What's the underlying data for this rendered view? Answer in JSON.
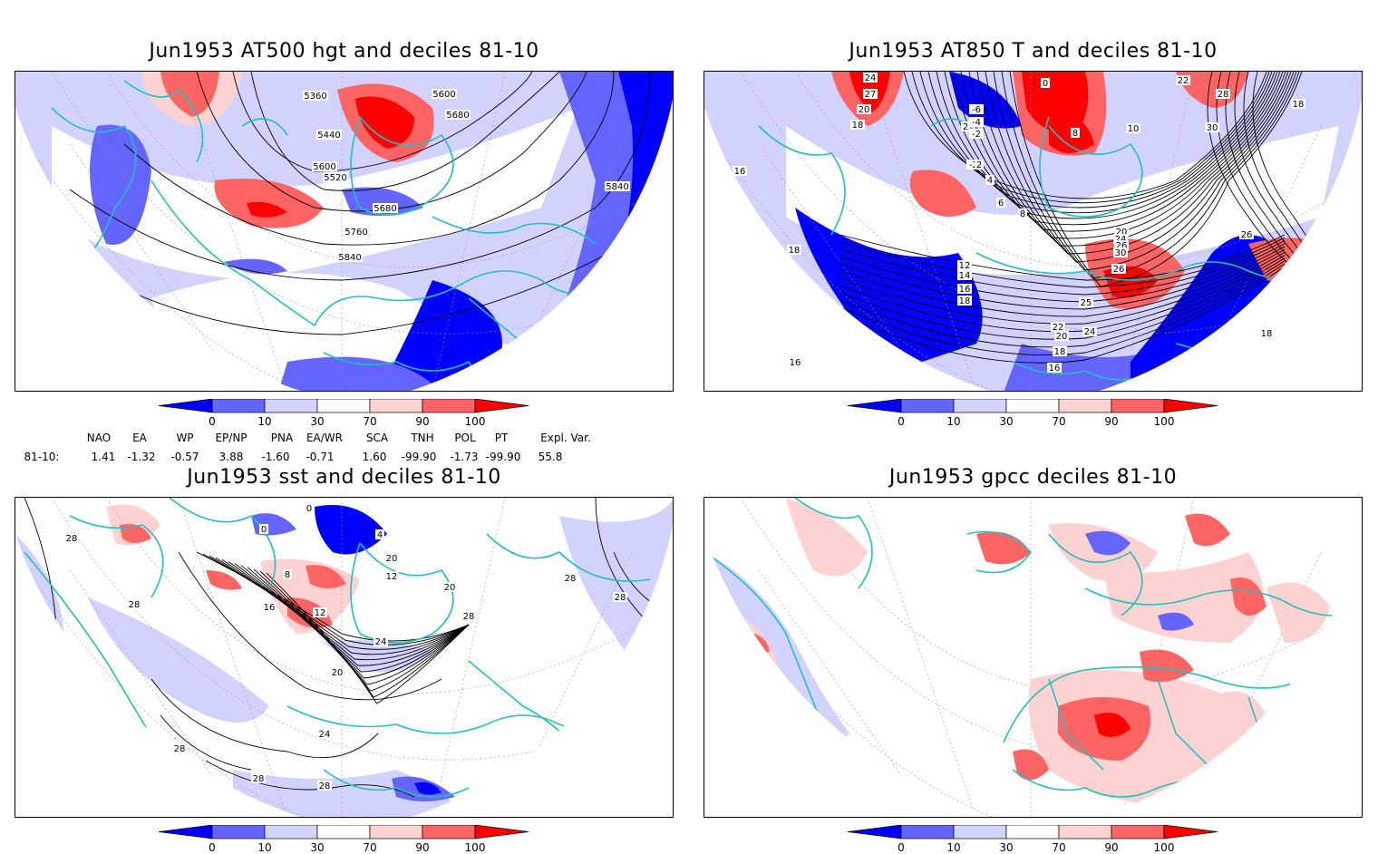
{
  "panels": [
    {
      "title": "Jun1953 AT500 hgt and deciles 81-10",
      "contour_labels": [
        "5360",
        "5600",
        "5680",
        "5440",
        "5520",
        "5600",
        "5680",
        "5760",
        "5840",
        "5840"
      ]
    },
    {
      "title": "Jun1953 AT850 T and deciles 81-10",
      "contour_labels": [
        "24",
        "27",
        "20",
        "18",
        "0",
        "-6",
        "-4",
        "-2",
        "2",
        "8",
        "10",
        "22",
        "28",
        "30",
        "18",
        "-2",
        "2",
        "4",
        "6",
        "8",
        "16",
        "18",
        "16",
        "12",
        "14",
        "16",
        "18",
        "20",
        "24",
        "26",
        "30",
        "26",
        "25",
        "24",
        "22",
        "20",
        "18",
        "16",
        "26",
        "18"
      ]
    },
    {
      "title": "Jun1953 sst and deciles 81-10",
      "contour_labels": [
        "28",
        "0",
        "0",
        "4",
        "8",
        "12",
        "16",
        "12",
        "20",
        "20",
        "24",
        "28",
        "28",
        "28",
        "20",
        "24",
        "28",
        "28",
        "28",
        "28"
      ]
    },
    {
      "title": "Jun1953 gpcc deciles 81-10",
      "contour_labels": []
    }
  ],
  "colorbar": {
    "ticks": [
      "0",
      "10",
      "30",
      "70",
      "90",
      "100"
    ],
    "colors": [
      "#0000ff",
      "#6464ff",
      "#d2d2ff",
      "#ffffff",
      "#ffd2d2",
      "#ff6464",
      "#ff0000"
    ]
  },
  "indices": {
    "headers": [
      "NAO",
      "EA",
      "WP",
      "EP/NP",
      "PNA",
      "EA/WR",
      "SCA",
      "TNH",
      "POL",
      "PT",
      "Expl. Var."
    ],
    "row_label": "81-10:",
    "values": [
      "1.41",
      "-1.32",
      "-0.57",
      "3.88",
      "-1.60",
      "-0.71",
      "1.60",
      "-99.90",
      "-1.73",
      "-99.90",
      "55.8"
    ]
  },
  "style": {
    "coast_color": "#20c0c0"
  }
}
